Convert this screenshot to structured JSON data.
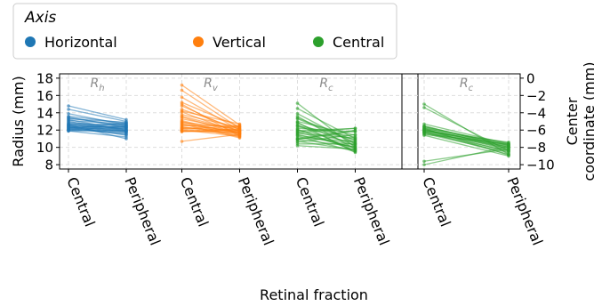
{
  "legend": {
    "title": "Axis",
    "entries": [
      {
        "label": "Horizontal",
        "color": "#1f77b4"
      },
      {
        "label": "Vertical",
        "color": "#ff7f0e"
      },
      {
        "label": "Central",
        "color": "#2ca02c"
      }
    ]
  },
  "xlabel": "Retinal fraction",
  "chart_data": [
    {
      "type": "line",
      "panel": "radius",
      "ylabel": "Radius (mm)",
      "ylim": [
        7.5,
        18.5
      ],
      "yticks": [
        8,
        10,
        12,
        14,
        16,
        18
      ],
      "grid": true,
      "groups": [
        {
          "name": "Horizontal",
          "label": "R",
          "subscript": "h",
          "color": "#1f77b4",
          "categories": [
            "Central",
            "Peripheral"
          ],
          "pairs": [
            [
              14.8,
              13.2
            ],
            [
              14.4,
              13.0
            ],
            [
              13.9,
              12.6
            ],
            [
              13.6,
              12.8
            ],
            [
              13.5,
              12.3
            ],
            [
              13.4,
              12.5
            ],
            [
              13.2,
              12.0
            ],
            [
              13.1,
              12.7
            ],
            [
              13.0,
              11.9
            ],
            [
              12.9,
              12.4
            ],
            [
              12.8,
              12.1
            ],
            [
              12.7,
              11.8
            ],
            [
              12.7,
              12.6
            ],
            [
              12.6,
              12.2
            ],
            [
              12.5,
              11.7
            ],
            [
              12.5,
              12.3
            ],
            [
              12.4,
              12.0
            ],
            [
              12.3,
              11.5
            ],
            [
              12.3,
              12.4
            ],
            [
              12.2,
              11.9
            ],
            [
              12.1,
              12.2
            ],
            [
              12.1,
              11.6
            ],
            [
              12.0,
              11.8
            ],
            [
              12.0,
              12.5
            ],
            [
              11.9,
              11.2
            ],
            [
              11.9,
              12.0
            ],
            [
              12.6,
              11.0
            ],
            [
              13.3,
              12.9
            ],
            [
              12.4,
              11.4
            ],
            [
              12.2,
              12.8
            ]
          ]
        },
        {
          "name": "Vertical",
          "label": "R",
          "subscript": "v",
          "color": "#ff7f0e",
          "categories": [
            "Central",
            "Peripheral"
          ],
          "pairs": [
            [
              17.2,
              12.6
            ],
            [
              16.6,
              12.2
            ],
            [
              15.8,
              12.0
            ],
            [
              15.2,
              12.4
            ],
            [
              14.8,
              11.8
            ],
            [
              14.4,
              12.1
            ],
            [
              14.1,
              11.6
            ],
            [
              13.8,
              12.3
            ],
            [
              13.6,
              11.9
            ],
            [
              13.3,
              12.0
            ],
            [
              13.1,
              11.5
            ],
            [
              12.9,
              12.2
            ],
            [
              12.8,
              11.7
            ],
            [
              12.6,
              11.9
            ],
            [
              12.5,
              12.5
            ],
            [
              12.4,
              11.4
            ],
            [
              12.3,
              11.8
            ],
            [
              12.2,
              12.0
            ],
            [
              12.1,
              11.6
            ],
            [
              12.0,
              11.3
            ],
            [
              11.9,
              11.9
            ],
            [
              11.8,
              12.1
            ],
            [
              10.7,
              11.5
            ],
            [
              13.0,
              11.2
            ],
            [
              14.2,
              12.7
            ],
            [
              12.7,
              11.1
            ],
            [
              13.5,
              11.6
            ],
            [
              12.2,
              12.4
            ],
            [
              15.0,
              11.3
            ],
            [
              11.9,
              11.7
            ]
          ]
        },
        {
          "name": "Central",
          "label": "R",
          "subscript": "c",
          "color": "#2ca02c",
          "categories": [
            "Central",
            "Peripheral"
          ],
          "pairs": [
            [
              15.1,
              10.0
            ],
            [
              14.5,
              11.0
            ],
            [
              13.9,
              10.4
            ],
            [
              13.6,
              9.8
            ],
            [
              13.3,
              10.6
            ],
            [
              13.0,
              11.4
            ],
            [
              12.8,
              10.2
            ],
            [
              12.6,
              9.6
            ],
            [
              12.4,
              10.9
            ],
            [
              12.2,
              11.8
            ],
            [
              12.0,
              10.5
            ],
            [
              11.9,
              12.2
            ],
            [
              11.8,
              9.9
            ],
            [
              11.6,
              11.1
            ],
            [
              11.4,
              10.3
            ],
            [
              11.3,
              9.5
            ],
            [
              11.1,
              10.7
            ],
            [
              11.0,
              12.0
            ],
            [
              10.9,
              10.1
            ],
            [
              10.7,
              9.7
            ],
            [
              10.6,
              11.5
            ],
            [
              10.4,
              10.4
            ],
            [
              10.2,
              9.8
            ],
            [
              12.9,
              9.4
            ],
            [
              11.7,
              12.2
            ],
            [
              13.4,
              10.8
            ],
            [
              10.9,
              11.9
            ],
            [
              12.1,
              9.6
            ],
            [
              11.5,
              10.0
            ],
            [
              12.5,
              11.2
            ]
          ]
        }
      ]
    },
    {
      "type": "line",
      "panel": "center",
      "ylabel": "Center coordinate (mm)",
      "ylim": [
        -10.5,
        0.5
      ],
      "yticks": [
        0,
        -2,
        -4,
        -6,
        -8,
        -10
      ],
      "grid": true,
      "groups": [
        {
          "name": "Central",
          "label": "R",
          "subscript": "c",
          "color": "#2ca02c",
          "categories": [
            "Central",
            "Peripheral"
          ],
          "pairs": [
            [
              -3.0,
              -8.8
            ],
            [
              -3.4,
              -8.4
            ],
            [
              -5.3,
              -7.6
            ],
            [
              -5.5,
              -8.0
            ],
            [
              -5.6,
              -7.8
            ],
            [
              -5.7,
              -8.2
            ],
            [
              -5.8,
              -7.5
            ],
            [
              -5.9,
              -8.0
            ],
            [
              -6.0,
              -8.5
            ],
            [
              -6.1,
              -7.7
            ],
            [
              -6.2,
              -8.1
            ],
            [
              -6.3,
              -7.9
            ],
            [
              -6.4,
              -8.6
            ],
            [
              -6.5,
              -7.6
            ],
            [
              -6.6,
              -9.0
            ],
            [
              -5.9,
              -8.3
            ],
            [
              -6.0,
              -7.8
            ],
            [
              -6.2,
              -8.8
            ],
            [
              -9.6,
              -8.2
            ],
            [
              -10.0,
              -7.9
            ],
            [
              -6.1,
              -7.4
            ],
            [
              -5.8,
              -8.9
            ],
            [
              -6.3,
              -8.4
            ],
            [
              -5.6,
              -7.7
            ]
          ]
        }
      ]
    }
  ]
}
